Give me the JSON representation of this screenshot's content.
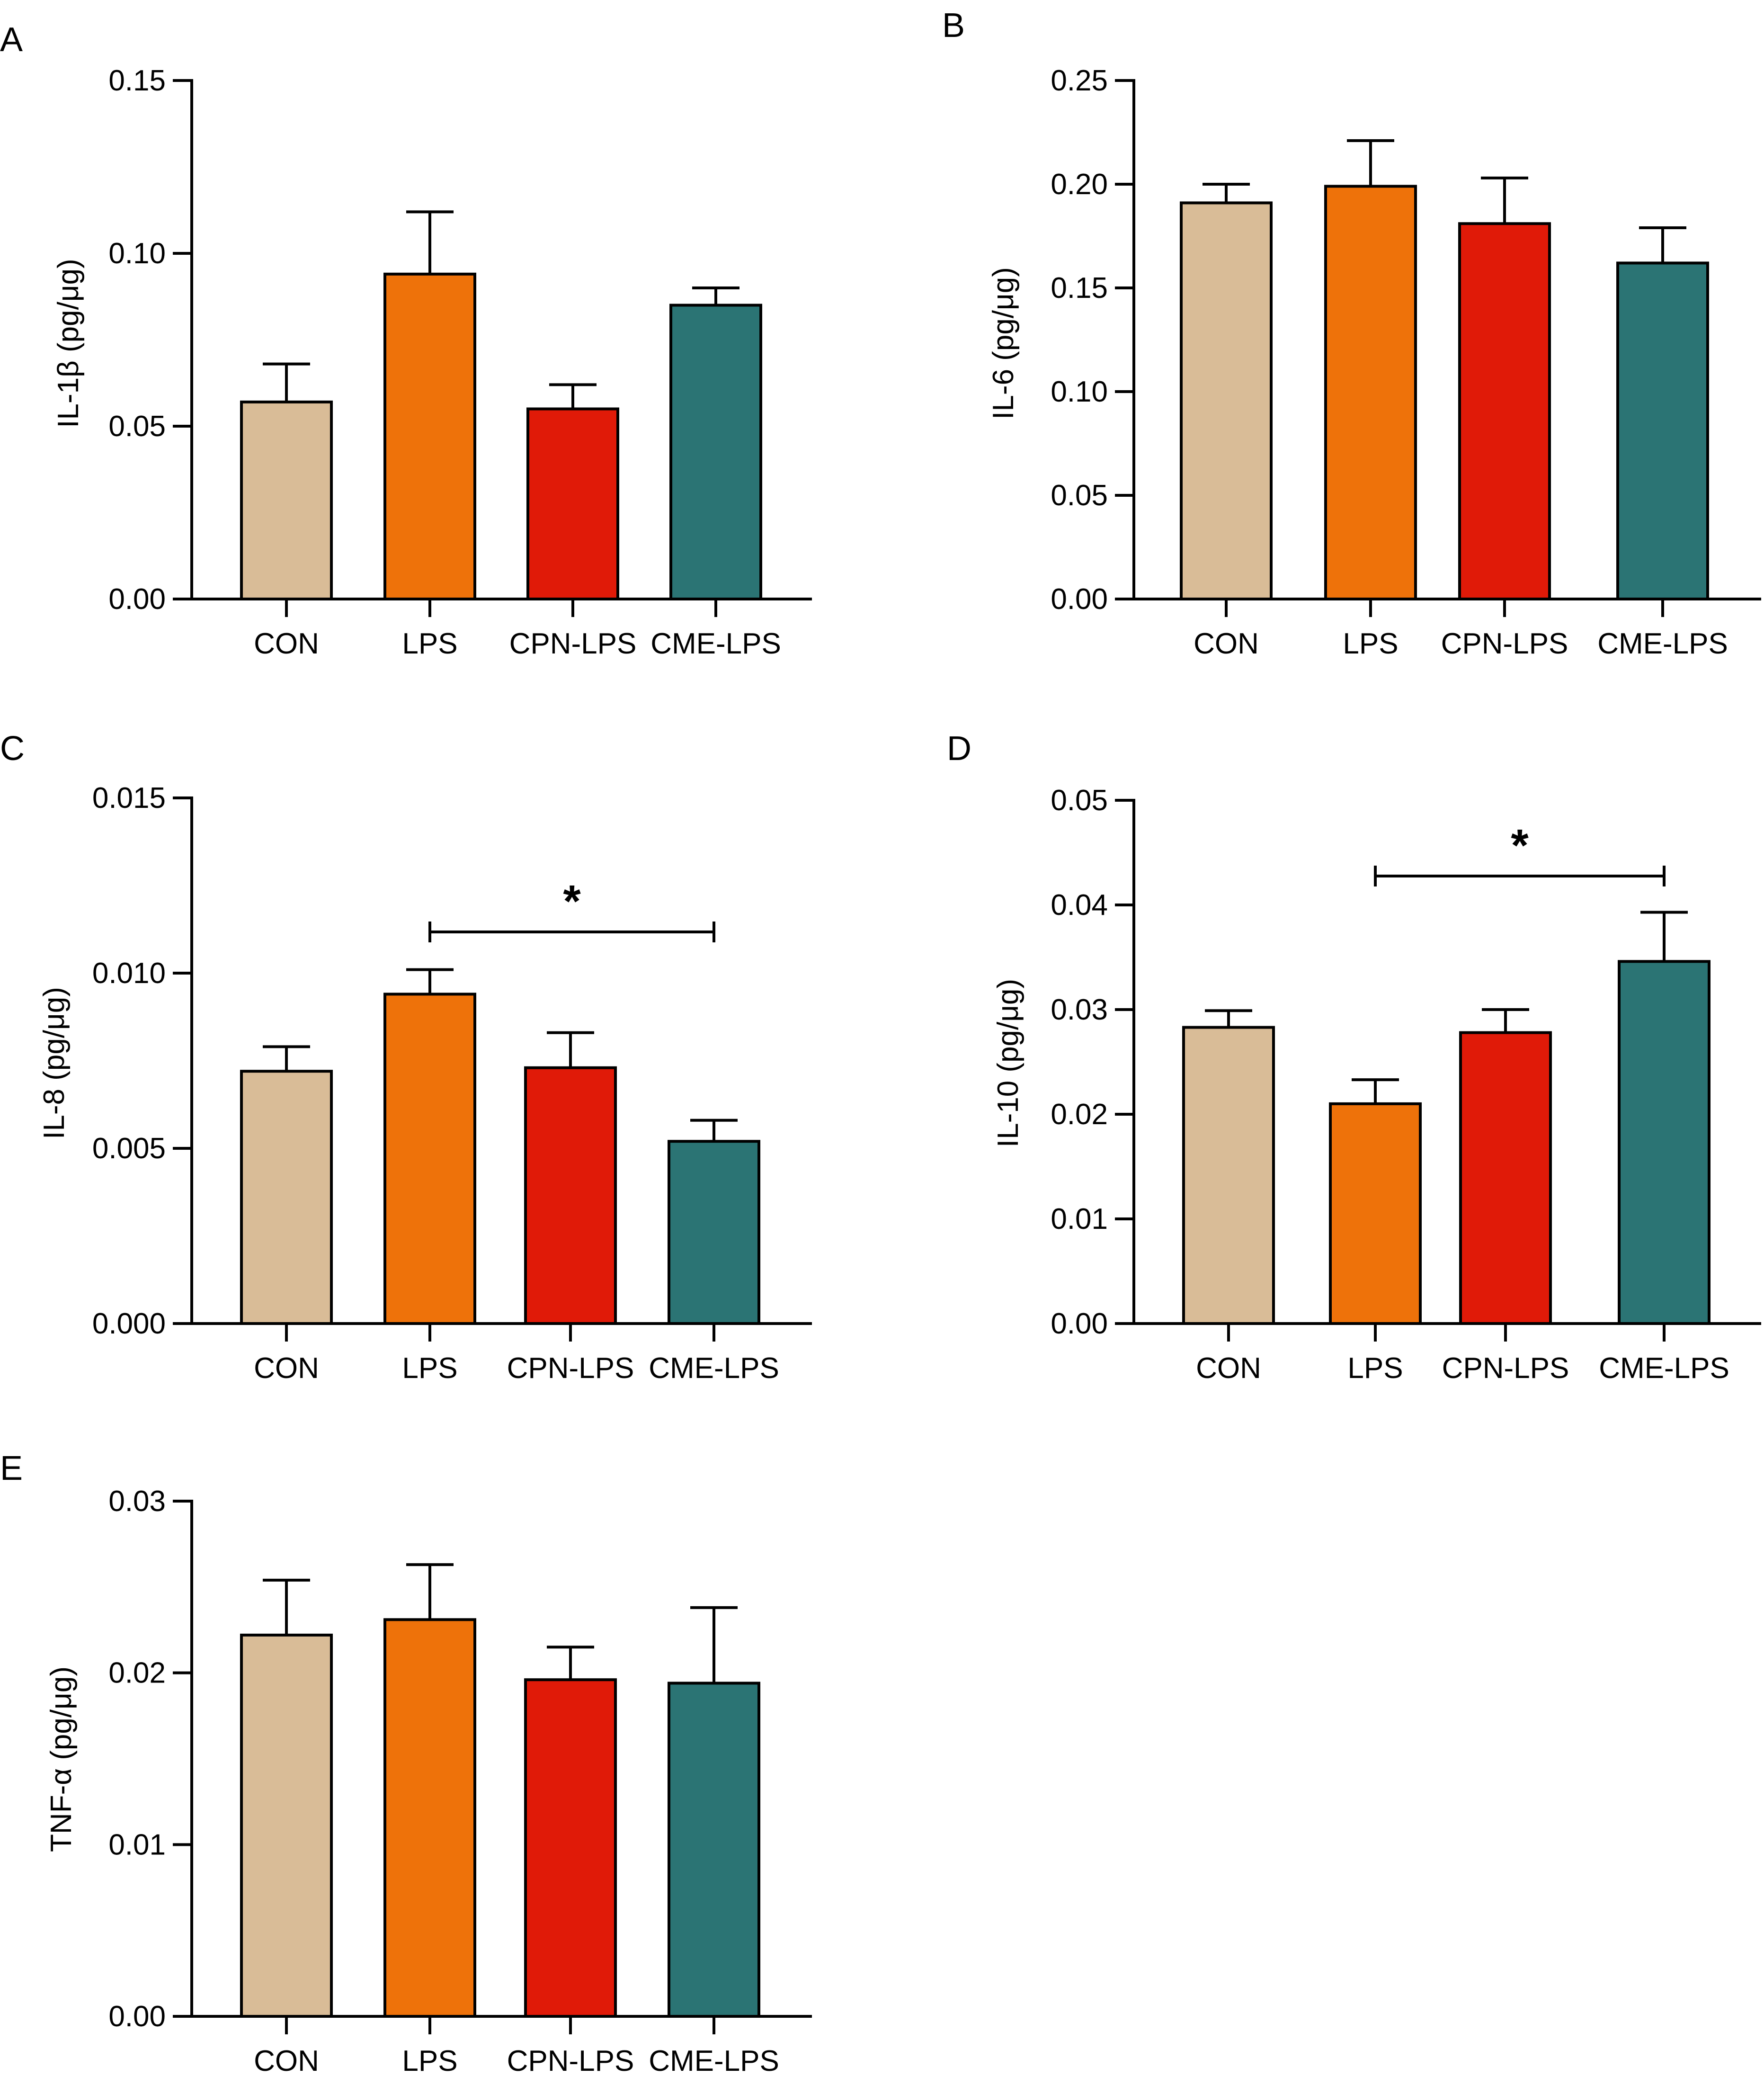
{
  "figure": {
    "panel_letters": [
      "A",
      "B",
      "C",
      "D",
      "E"
    ]
  },
  "colors": {
    "CON": "#D9BC97",
    "LPS": "#EE720A",
    "CPN-LPS": "#E01A08",
    "CME-LPS": "#2B7474",
    "axis": "#000000"
  },
  "chart_data": [
    {
      "panel": "A",
      "type": "bar",
      "categories": [
        "CON",
        "LPS",
        "CPN-LPS",
        "CME-LPS"
      ],
      "values": [
        0.057,
        0.094,
        0.055,
        0.085
      ],
      "errors": [
        0.011,
        0.018,
        0.007,
        0.005
      ],
      "ylabel": "IL-1β (pg/μg)",
      "ylim": [
        0,
        0.15
      ],
      "yticks": [
        "0.00",
        "0.05",
        "0.10",
        "0.15"
      ],
      "significance": []
    },
    {
      "panel": "B",
      "type": "bar",
      "categories": [
        "CON",
        "LPS",
        "CPN-LPS",
        "CME-LPS"
      ],
      "values": [
        0.191,
        0.199,
        0.181,
        0.162
      ],
      "errors": [
        0.009,
        0.022,
        0.022,
        0.017
      ],
      "ylabel": "IL-6 (pg/μg)",
      "ylim": [
        0,
        0.25
      ],
      "yticks": [
        "0.00",
        "0.05",
        "0.10",
        "0.15",
        "0.20",
        "0.25"
      ],
      "significance": []
    },
    {
      "panel": "C",
      "type": "bar",
      "categories": [
        "CON",
        "LPS",
        "CPN-LPS",
        "CME-LPS"
      ],
      "values": [
        0.0072,
        0.0094,
        0.0073,
        0.0052
      ],
      "errors": [
        0.0007,
        0.0007,
        0.001,
        0.0006
      ],
      "ylabel": "IL-8 (pg/μg)",
      "ylim": [
        0,
        0.015
      ],
      "yticks": [
        "0.000",
        "0.005",
        "0.010",
        "0.015"
      ],
      "significance": [
        {
          "from": 1,
          "to": 3,
          "label": "*"
        }
      ]
    },
    {
      "panel": "D",
      "type": "bar",
      "categories": [
        "CON",
        "LPS",
        "CPN-LPS",
        "CME-LPS"
      ],
      "values": [
        0.0283,
        0.021,
        0.0278,
        0.0346
      ],
      "errors": [
        0.0016,
        0.0023,
        0.0022,
        0.0047
      ],
      "ylabel": "IL-10 (pg/μg)",
      "ylim": [
        0,
        0.05
      ],
      "yticks": [
        "0.00",
        "0.01",
        "0.02",
        "0.03",
        "0.04",
        "0.05"
      ],
      "significance": [
        {
          "from": 1,
          "to": 3,
          "label": "*"
        }
      ]
    },
    {
      "panel": "E",
      "type": "bar",
      "categories": [
        "CON",
        "LPS",
        "CPN-LPS",
        "CME-LPS"
      ],
      "values": [
        0.0222,
        0.0231,
        0.0196,
        0.0194
      ],
      "errors": [
        0.0032,
        0.0032,
        0.0019,
        0.0044
      ],
      "ylabel": "TNF-α (pg/μg)",
      "ylim": [
        0,
        0.03
      ],
      "yticks": [
        "0.00",
        "0.01",
        "0.02",
        "0.03"
      ],
      "significance": []
    }
  ]
}
